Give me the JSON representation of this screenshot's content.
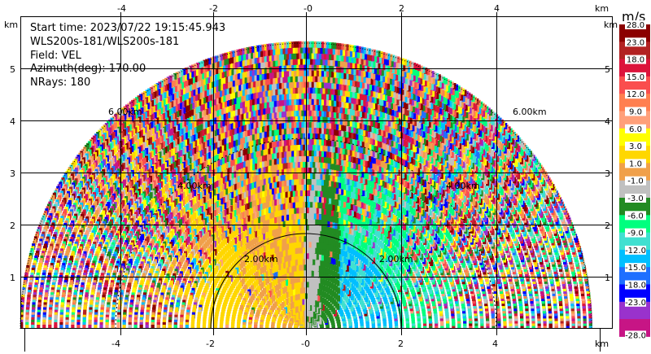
{
  "info": {
    "start_time": "Start time: 2023/07/22 19:15:45.943",
    "instrument": "WLS200s-181/WLS200s-181",
    "field": "Field: VEL",
    "azimuth": "Azimuth(deg): 170.00",
    "nrays": "NRays: 180"
  },
  "axis": {
    "unit": "km",
    "x_ticks": [
      "-4",
      "-2",
      "-0",
      "2",
      "4"
    ],
    "y_ticks": [
      "5",
      "4",
      "3",
      "2",
      "1"
    ]
  },
  "rings": {
    "r2": "2.00km",
    "r4": "4.00km",
    "r6": "6.00km"
  },
  "colorbar": {
    "title": "m/s",
    "labels": [
      "28.0",
      "23.0",
      "18.0",
      "15.0",
      "12.0",
      "9.0",
      "6.0",
      "3.0",
      "1.0",
      "-1.0",
      "-3.0",
      "-6.0",
      "-9.0",
      "-12.0",
      "-15.0",
      "-18.0",
      "-23.0",
      "-28.0"
    ],
    "colors": [
      "#8b0000",
      "#b22222",
      "#dc143c",
      "#fa4e4e",
      "#ff7f50",
      "#ffa07a",
      "#ffff00",
      "#ffd700",
      "#f0a04a",
      "#c0c0c0",
      "#228b22",
      "#00ff7f",
      "#40e0d0",
      "#00bfff",
      "#1e6fff",
      "#0000ff",
      "#9932cc",
      "#c71585"
    ]
  },
  "chart_data": {
    "type": "heatmap",
    "field": "VEL",
    "units": "m/s",
    "x_range_km": [
      -6,
      6
    ],
    "y_range_km": [
      0,
      6
    ],
    "range_rings_km": [
      2,
      4,
      6
    ],
    "color_scale": [
      -28,
      -23,
      -18,
      -15,
      -12,
      -9,
      -6,
      -3,
      -1,
      1,
      3,
      6,
      9,
      12,
      15,
      18,
      23,
      28
    ]
  }
}
